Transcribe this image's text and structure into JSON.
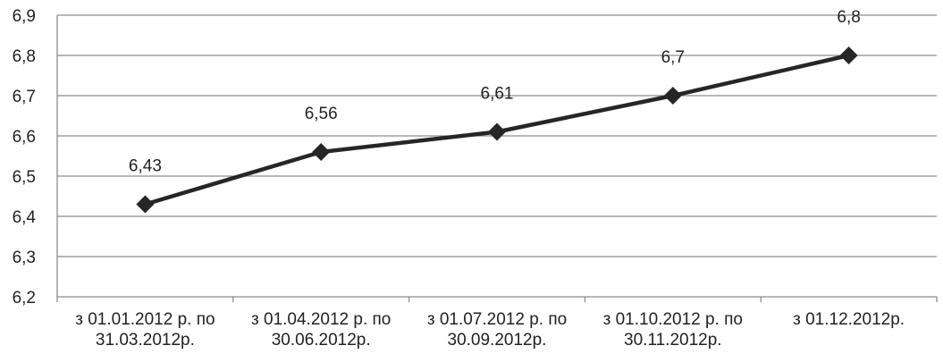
{
  "chart_data": {
    "type": "line",
    "title": "",
    "xlabel": "",
    "ylabel": "",
    "categories": [
      [
        "з 01.01.2012 р. по",
        "31.03.2012р."
      ],
      [
        "з 01.04.2012 р. по",
        "30.06.2012р."
      ],
      [
        "з 01.07.2012 р. по",
        "30.09.2012р."
      ],
      [
        "з 01.10.2012 р. по",
        "30.11.2012р."
      ],
      [
        "з 01.12.2012р."
      ]
    ],
    "series": [
      {
        "values": [
          6.43,
          6.56,
          6.61,
          6.7,
          6.8
        ],
        "data_labels": [
          "6,43",
          "6,56",
          "6,61",
          "6,7",
          "6,8"
        ],
        "color": "#262626",
        "marker": "diamond"
      }
    ],
    "ylim": [
      6.2,
      6.9
    ],
    "yticks": [
      6.2,
      6.3,
      6.4,
      6.5,
      6.6,
      6.7,
      6.8,
      6.9
    ],
    "ytick_labels": [
      "6,2",
      "6,3",
      "6,4",
      "6,5",
      "6,6",
      "6,7",
      "6,8",
      "6,9"
    ],
    "grid": true,
    "legend": "none"
  }
}
